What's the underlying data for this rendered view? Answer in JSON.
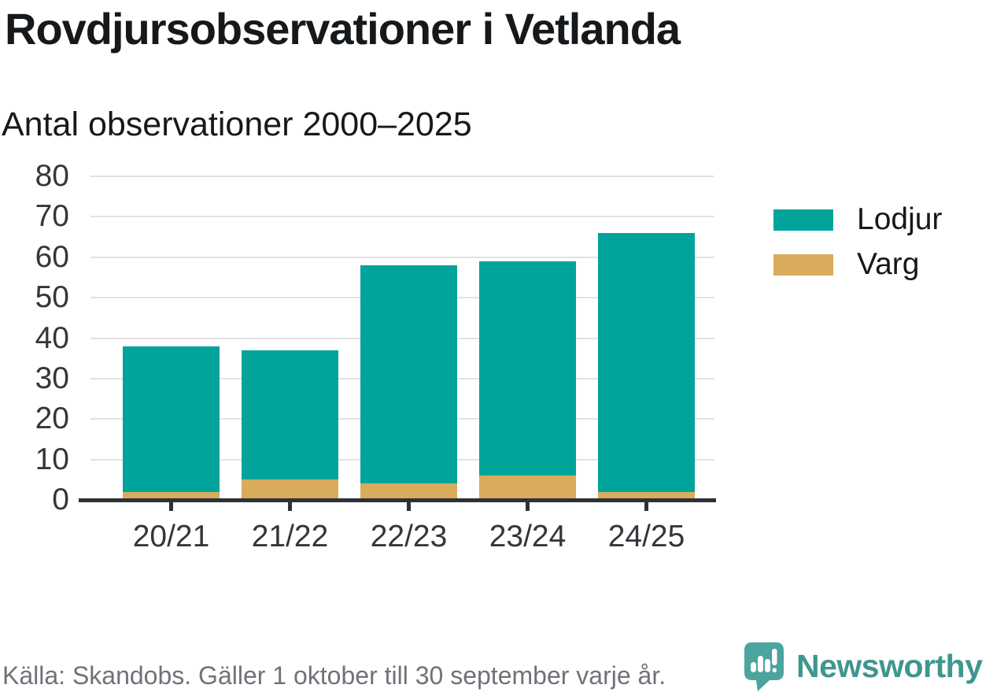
{
  "header": {
    "title": "Rovdjursobservationer i Vetlanda",
    "subtitle": "Antal observationer 2000–2025"
  },
  "chart_data": {
    "type": "bar",
    "stacked": true,
    "categories": [
      "20/21",
      "21/22",
      "22/23",
      "23/24",
      "24/25"
    ],
    "series": [
      {
        "name": "Lodjur",
        "color": "#00a49b",
        "values": [
          36,
          32,
          54,
          53,
          64
        ]
      },
      {
        "name": "Varg",
        "color": "#d9ab5d",
        "values": [
          2,
          5,
          4,
          6,
          2
        ]
      }
    ],
    "stack_order_bottom_to_top": [
      "Varg",
      "Lodjur"
    ],
    "totals": [
      38,
      37,
      58,
      59,
      66
    ],
    "title": "Rovdjursobservationer i Vetlanda",
    "subtitle": "Antal observationer 2000–2025",
    "xlabel": "",
    "ylabel": "",
    "ylim": [
      0,
      80
    ],
    "yticks": [
      0,
      10,
      20,
      30,
      40,
      50,
      60,
      70,
      80
    ],
    "grid": true,
    "legend_position": "right"
  },
  "footer": {
    "source": "Källa: Skandobs. Gäller 1 oktober till 30 september varje år.",
    "brand": "Newsworthy"
  },
  "colors": {
    "lodjur": "#00a49b",
    "varg": "#d9ab5d",
    "gridline": "#e2e2e2",
    "axis": "#2e3236",
    "text": "#16191c",
    "muted_text": "#6f7278",
    "brand_teal": "#3f968f",
    "logo_bubble": "#4ba49e"
  }
}
